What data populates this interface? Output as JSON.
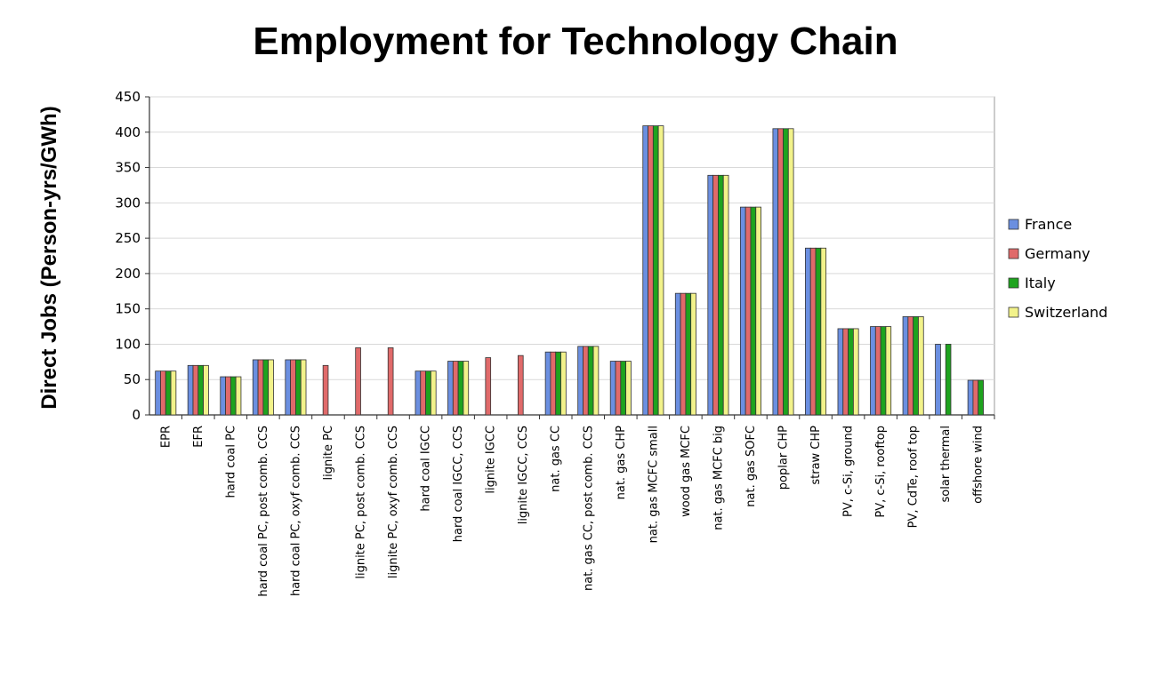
{
  "chart_data": {
    "type": "bar",
    "title": "Employment for Technology Chain",
    "ylabel": "Direct Jobs (Person-yrs/GWh)",
    "xlabel": "",
    "ylim": [
      0,
      450
    ],
    "yticks": [
      0,
      50,
      100,
      150,
      200,
      250,
      300,
      350,
      400,
      450
    ],
    "grid": true,
    "legend_position": "right",
    "categories": [
      "EPR",
      "EFR",
      "hard coal PC",
      "hard coal PC, post comb. CCS",
      "hard coal PC, oxyf comb. CCS",
      "lignite PC",
      "lignite PC, post comb. CCS",
      "lignite PC, oxyf comb. CCS",
      "hard coal IGCC",
      "hard coal IGCC, CCS",
      "lignite IGCC",
      "lignite IGCC, CCS",
      "nat. gas CC",
      "nat. gas CC, post comb. CCS",
      "nat. gas CHP",
      "nat. gas MCFC small",
      "wood gas MCFC",
      "nat. gas MCFC big",
      "nat. gas SOFC",
      "poplar CHP",
      "straw CHP",
      "PV, c-Si, ground",
      "PV, c-Si, rooftop",
      "PV, CdTe, roof top",
      "solar thermal",
      "offshore wind"
    ],
    "series": [
      {
        "name": "France",
        "color": "#6b8fe0",
        "values": [
          62,
          70,
          54,
          78,
          78,
          null,
          null,
          null,
          62,
          76,
          null,
          null,
          89,
          97,
          76,
          409,
          172,
          339,
          294,
          405,
          236,
          122,
          125,
          139,
          100,
          49
        ]
      },
      {
        "name": "Germany",
        "color": "#e06a6a",
        "values": [
          62,
          70,
          54,
          78,
          78,
          70,
          95,
          95,
          62,
          76,
          81,
          84,
          89,
          97,
          76,
          409,
          172,
          339,
          294,
          405,
          236,
          122,
          125,
          139,
          null,
          49
        ]
      },
      {
        "name": "Italy",
        "color": "#1ea31e",
        "values": [
          62,
          70,
          54,
          78,
          78,
          null,
          null,
          null,
          62,
          76,
          null,
          null,
          89,
          97,
          76,
          409,
          172,
          339,
          294,
          405,
          236,
          122,
          125,
          139,
          100,
          49
        ]
      },
      {
        "name": "Switzerland",
        "color": "#f2f28a",
        "values": [
          62,
          70,
          54,
          78,
          78,
          null,
          null,
          null,
          62,
          76,
          null,
          null,
          89,
          97,
          76,
          409,
          172,
          339,
          294,
          405,
          236,
          122,
          125,
          139,
          null,
          null
        ]
      }
    ]
  }
}
